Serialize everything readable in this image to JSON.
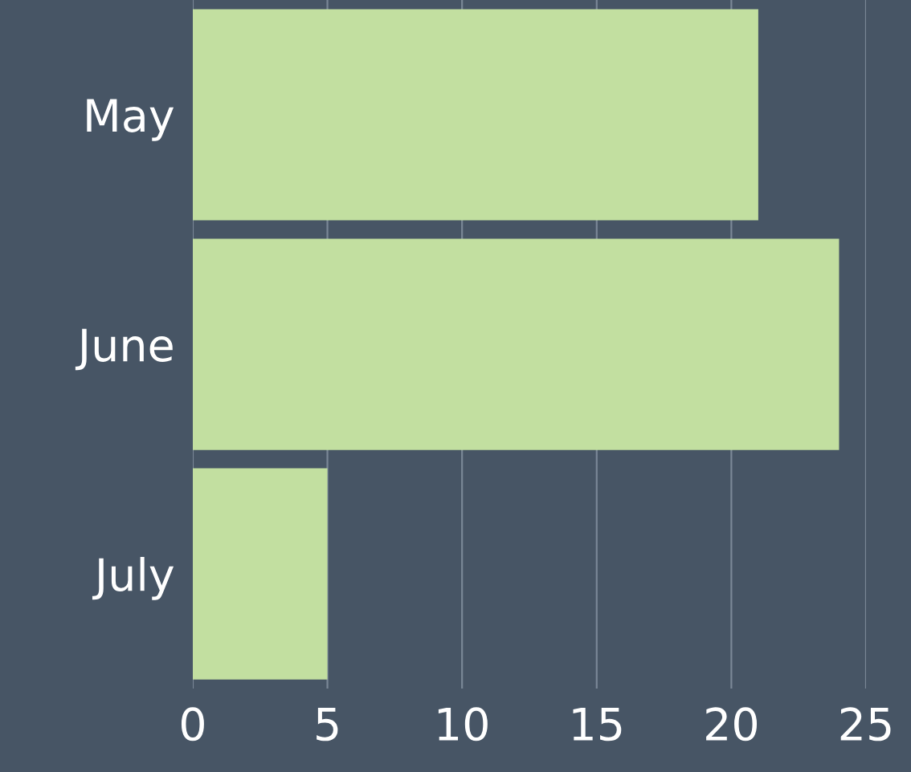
{
  "chart_data": {
    "type": "bar",
    "orientation": "horizontal",
    "categories": [
      "May",
      "June",
      "July"
    ],
    "values": [
      21,
      24,
      5
    ],
    "color": "#c2dfa0",
    "xlim": [
      0,
      25
    ],
    "xticks": [
      0,
      5,
      10,
      15,
      20,
      25
    ],
    "grid": "x",
    "legend": false
  }
}
